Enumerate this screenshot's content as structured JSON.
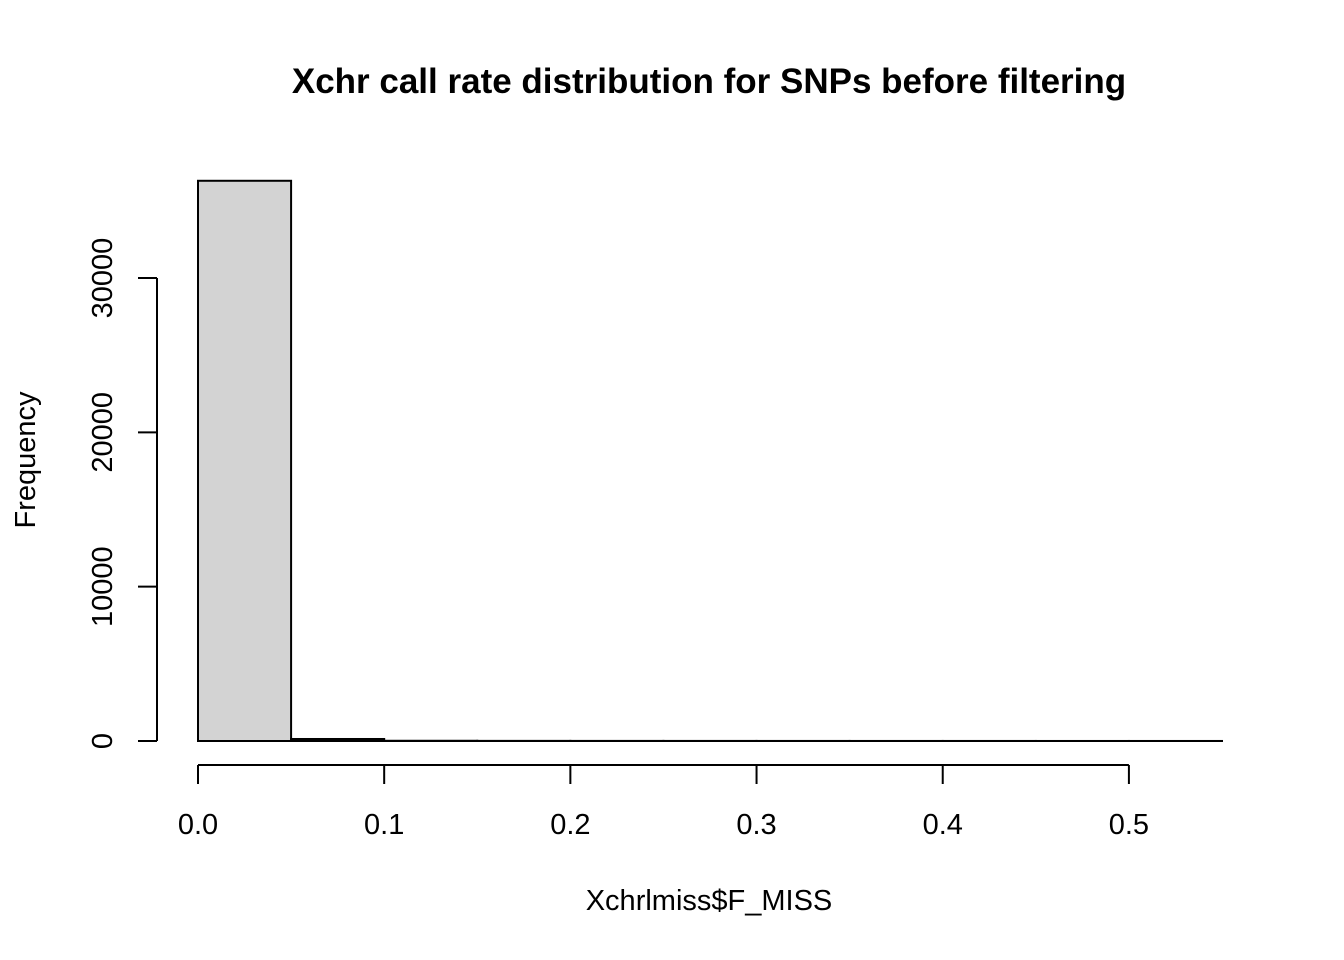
{
  "chart_data": {
    "type": "bar",
    "title": "Xchr call rate distribution for SNPs before filtering",
    "xlabel": "Xchrlmiss$F_MISS",
    "ylabel": "Frequency",
    "bins": [
      {
        "x0": 0.0,
        "x1": 0.05,
        "value": 36300
      },
      {
        "x0": 0.05,
        "x1": 0.1,
        "value": 130
      },
      {
        "x0": 0.1,
        "x1": 0.15,
        "value": 15
      },
      {
        "x0": 0.15,
        "x1": 0.2,
        "value": 8
      },
      {
        "x0": 0.2,
        "x1": 0.25,
        "value": 6
      },
      {
        "x0": 0.25,
        "x1": 0.3,
        "value": 5
      },
      {
        "x0": 0.3,
        "x1": 0.35,
        "value": 4
      },
      {
        "x0": 0.35,
        "x1": 0.4,
        "value": 3
      },
      {
        "x0": 0.4,
        "x1": 0.45,
        "value": 3
      },
      {
        "x0": 0.45,
        "x1": 0.5,
        "value": 2
      },
      {
        "x0": 0.5,
        "x1": 0.55,
        "value": 2
      }
    ],
    "xlim": [
      0.0,
      0.55
    ],
    "ylim": [
      0,
      36300
    ],
    "xticks": [
      {
        "value": 0.0,
        "label": "0.0"
      },
      {
        "value": 0.1,
        "label": "0.1"
      },
      {
        "value": 0.2,
        "label": "0.2"
      },
      {
        "value": 0.3,
        "label": "0.3"
      },
      {
        "value": 0.4,
        "label": "0.4"
      },
      {
        "value": 0.5,
        "label": "0.5"
      }
    ],
    "yticks": [
      {
        "value": 0,
        "label": "0"
      },
      {
        "value": 10000,
        "label": "10000"
      },
      {
        "value": 20000,
        "label": "20000"
      },
      {
        "value": 30000,
        "label": "30000"
      }
    ],
    "bar_fill": "#d3d3d3",
    "bar_stroke": "#000000",
    "grid": false,
    "legend": "none"
  }
}
